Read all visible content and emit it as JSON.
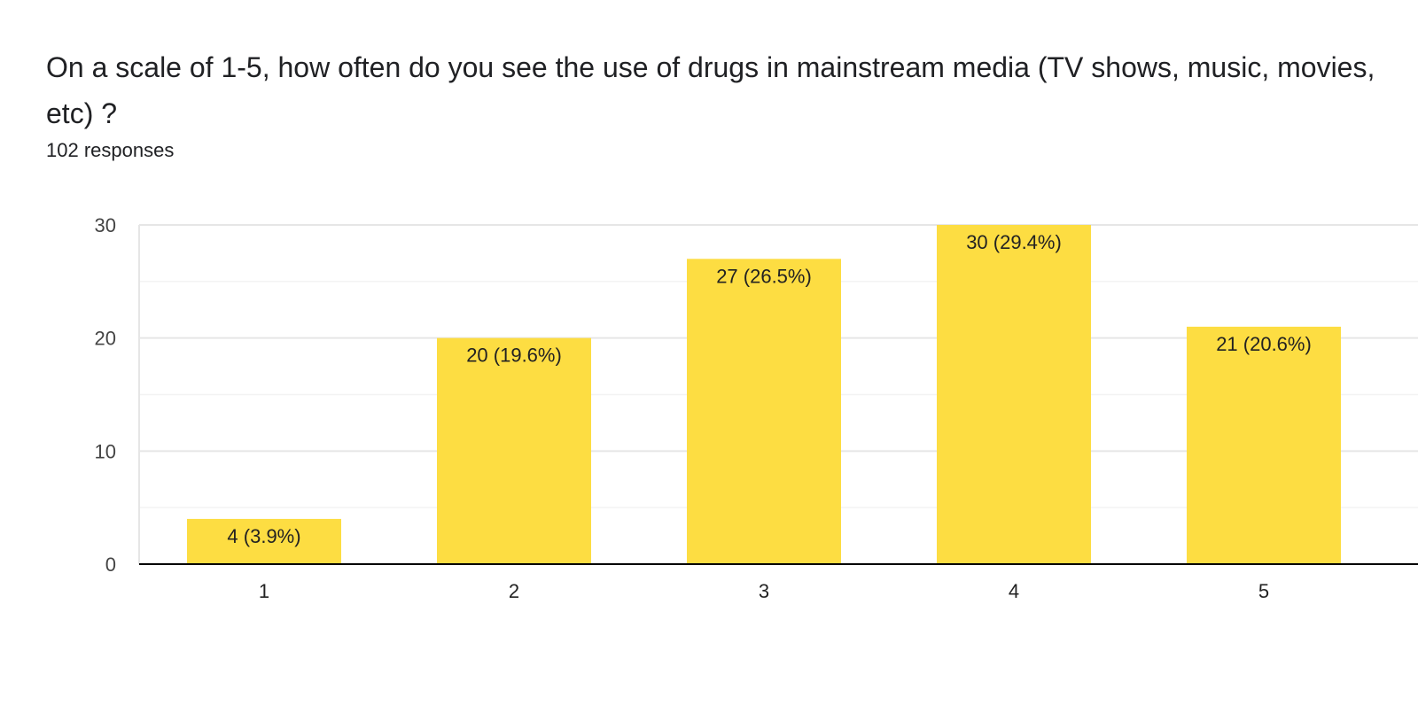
{
  "question": {
    "title": "On a scale of 1-5, how often do you see the use of drugs in mainstream media (TV shows, music, movies, etc) ?",
    "responses": "102 responses"
  },
  "colors": {
    "bar": "#FDDD42",
    "gridline": "#e6e6e6",
    "minor_gridline": "#f3f3f3",
    "axis": "#000000"
  },
  "chart_data": {
    "type": "bar",
    "title": "On a scale of 1-5, how often do you see the use of drugs in mainstream media (TV shows, music, movies, etc) ?",
    "xlabel": "",
    "ylabel": "",
    "categories": [
      "1",
      "2",
      "3",
      "4",
      "5"
    ],
    "values": [
      4,
      20,
      27,
      30,
      21
    ],
    "data_labels": [
      "4 (3.9%)",
      "20 (19.6%)",
      "27 (26.5%)",
      "30 (29.4%)",
      "21 (20.6%)"
    ],
    "ylim": [
      0,
      30
    ],
    "yticks": [
      0,
      10,
      20,
      30
    ],
    "grid": true,
    "legend": "none"
  }
}
